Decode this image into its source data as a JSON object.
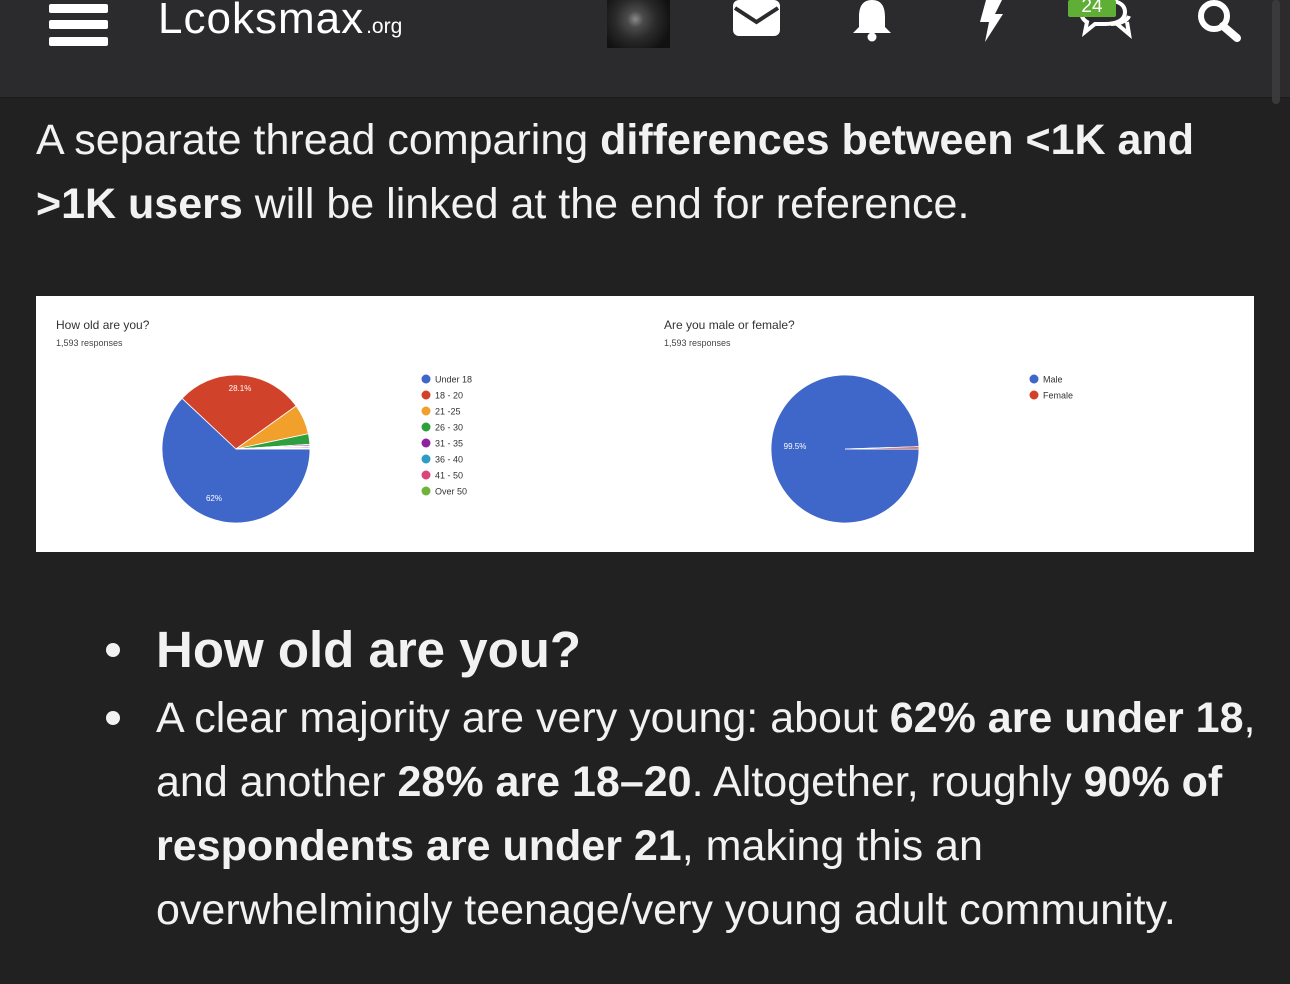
{
  "header": {
    "logo_main": "Lcoksmax",
    "logo_tld": ".org",
    "badge_count": "24"
  },
  "intro": {
    "t1": "A separate thread comparing ",
    "b1": "differences between <1K and >1K users",
    "t2": " will be linked at the end for reference."
  },
  "chart_data": [
    {
      "type": "pie",
      "title": "How old are you?",
      "subtitle": "1,593 responses",
      "categories": [
        "Under 18",
        "18 - 20",
        "21 -25",
        "26 - 30",
        "31 - 35",
        "36 - 40",
        "41 - 50",
        "Over 50"
      ],
      "values": [
        62,
        28.1,
        6.6,
        2.3,
        0.3,
        0.2,
        0.3,
        0.2
      ],
      "slice_labels": [
        "62%",
        "28.1%",
        "",
        "",
        "",
        "",
        "",
        ""
      ],
      "colors": [
        "#3f66c9",
        "#d1422a",
        "#f2a02c",
        "#2f9e3f",
        "#8e239d",
        "#2d9cc8",
        "#d9447a",
        "#6fb33c"
      ],
      "legend": "right"
    },
    {
      "type": "pie",
      "title": "Are you male or female?",
      "subtitle": "1,593 responses",
      "categories": [
        "Male",
        "Female"
      ],
      "values": [
        99.5,
        0.5
      ],
      "slice_labels": [
        "99.5%",
        ""
      ],
      "colors": [
        "#3f66c9",
        "#d1422a"
      ],
      "legend": "right"
    }
  ],
  "bullets": {
    "q": "How old are you?",
    "a1": "A clear majority are very young: about ",
    "a1b": "62% are under 18",
    "a2": ", and another ",
    "a2b": "28% are 18–20",
    "a3": ". Altogether, roughly ",
    "a3b": "90% of respondents are under 21",
    "a4": ", making this an overwhelmingly teenage/very young adult community."
  }
}
